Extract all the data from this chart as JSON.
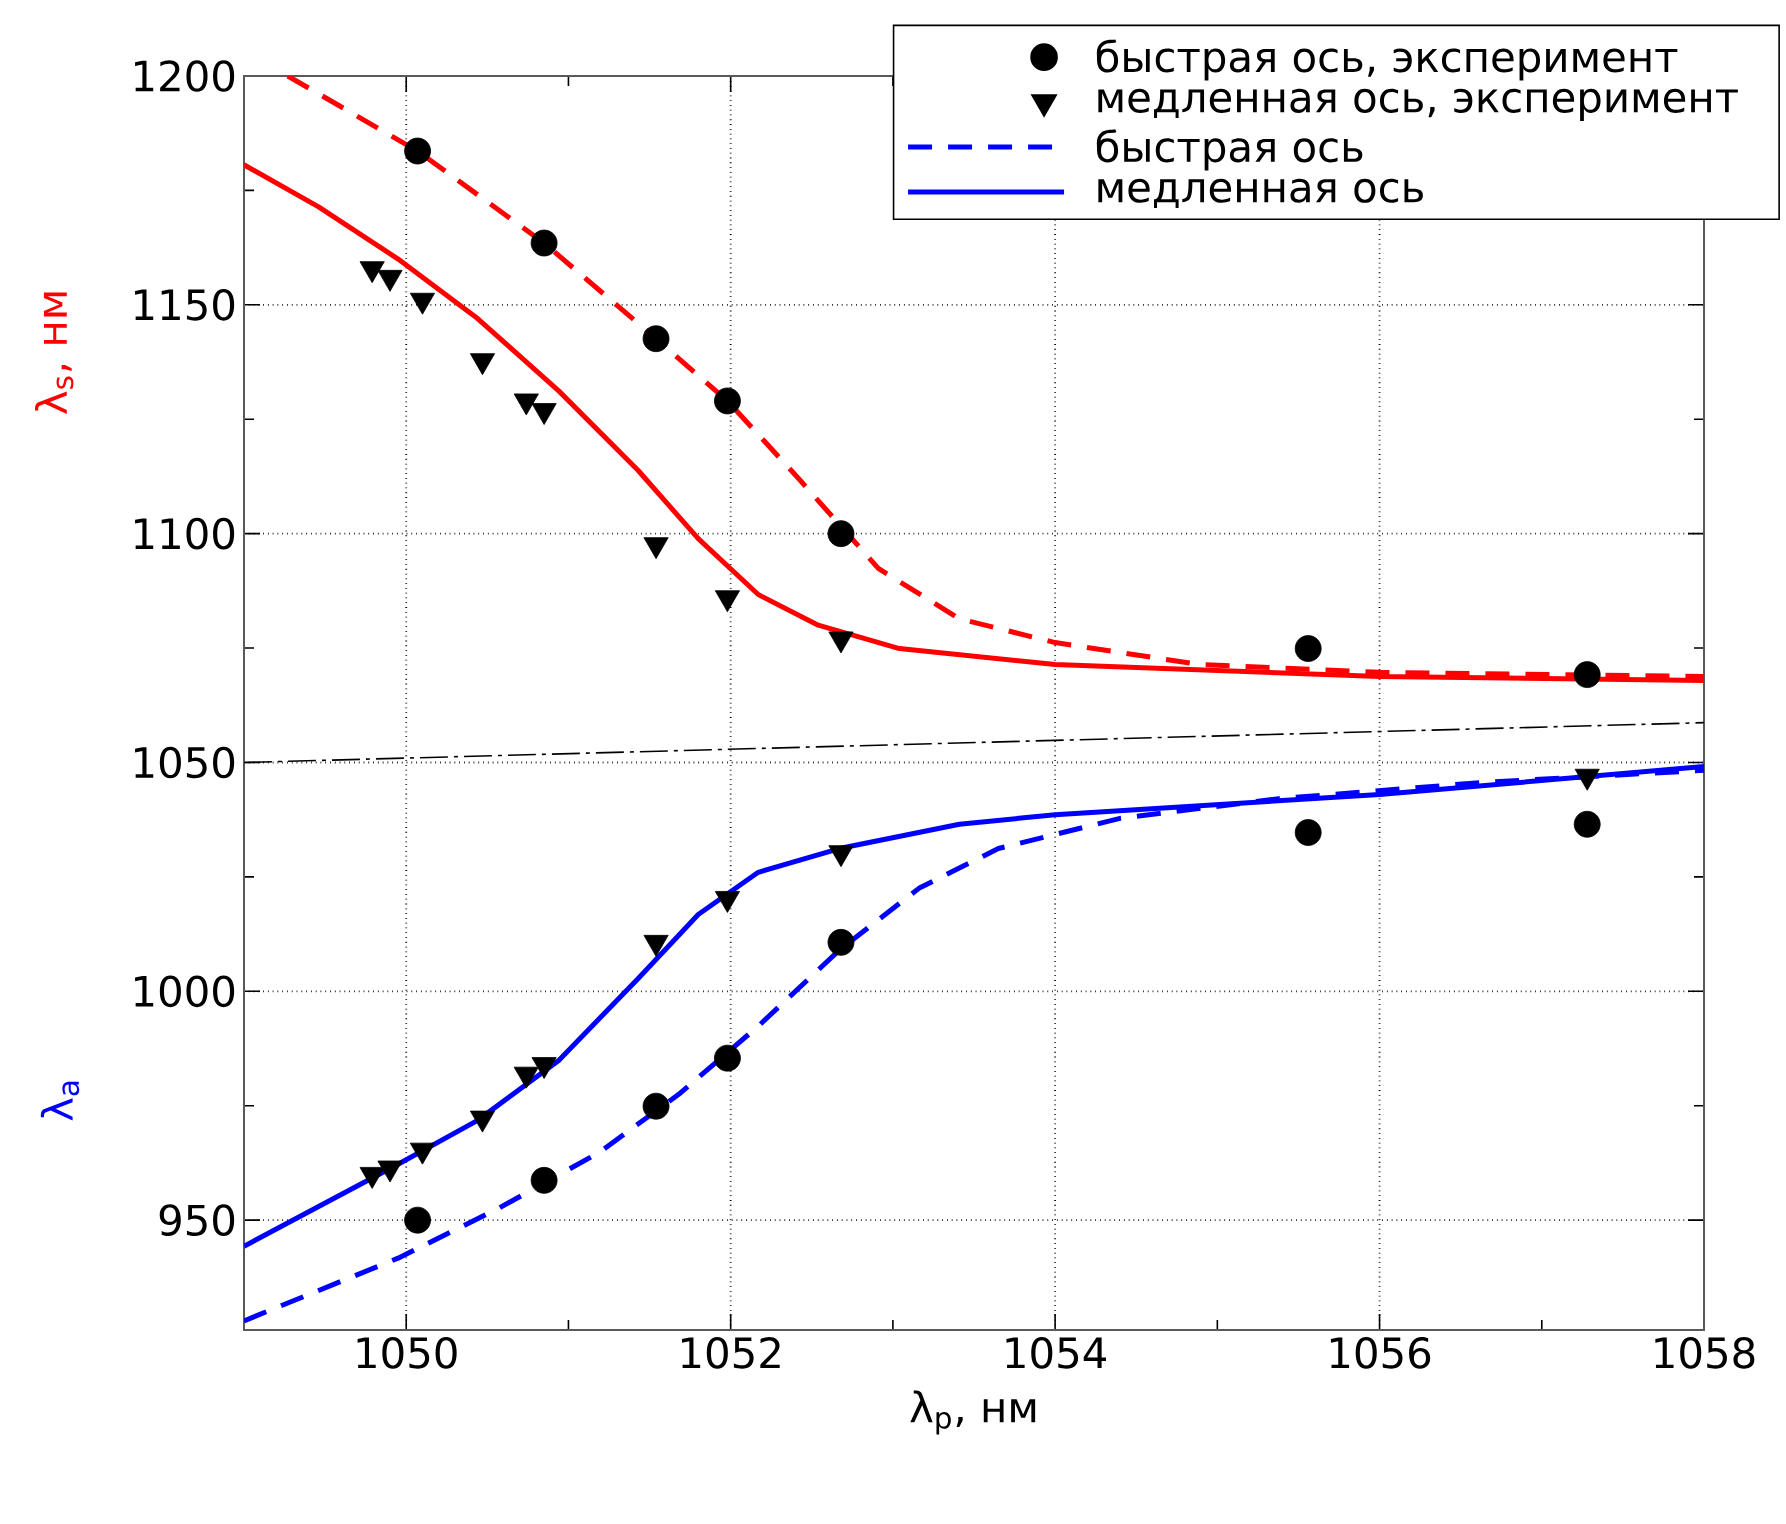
{
  "chart_data": {
    "type": "line",
    "xlabel": "λ$_{p}$, нм",
    "ylabel": "λ$_{s}$, нм",
    "annotations": [
      "λ$_{a}$"
    ],
    "xlim": [
      1049,
      1058
    ],
    "ylim": [
      926,
      1200
    ],
    "xticks": [
      1050,
      1052,
      1054,
      1056,
      1058
    ],
    "yticks": [
      950,
      1000,
      1050,
      1100,
      1150,
      1200
    ],
    "grid": true,
    "legend": "top right",
    "series": [
      {
        "name": "быстрая ось, эксперимент",
        "type": "scatter",
        "marker": "circle",
        "color": "#000000",
        "x": [
          1050.07,
          1050.85,
          1051.54,
          1051.98,
          1052.68,
          1055.56,
          1057.28,
          1050.07,
          1050.85,
          1051.54,
          1051.98,
          1052.68,
          1055.56,
          1057.28
        ],
        "values": [
          1183.6,
          1163.5,
          1142.6,
          1129,
          1100,
          1074.9,
          1069.2,
          950,
          958.7,
          974.9,
          985.4,
          1010.7,
          1034.7,
          1036.5
        ]
      },
      {
        "name": "медленная ось, эксперимент",
        "type": "scatter",
        "marker": "triangle",
        "color": "#000000",
        "x": [
          1049.79,
          1049.9,
          1050.1,
          1050.47,
          1050.74,
          1050.85,
          1051.54,
          1051.98,
          1052.68,
          1049.79,
          1049.9,
          1050.1,
          1050.47,
          1050.74,
          1050.85,
          1051.54,
          1051.98,
          1052.68,
          1057.28
        ],
        "values": [
          1157.9,
          1156,
          1151,
          1137.8,
          1129,
          1126.9,
          1097.6,
          1086,
          1077,
          960,
          961.4,
          965.3,
          972.3,
          981.9,
          984,
          1010.7,
          1020.3,
          1030.3,
          1047
        ]
      },
      {
        "name": "быстрая ось",
        "line_style": "dashed",
        "color": "#0000ff",
        "x": [
          1049,
          1049.95,
          1050.57,
          1051.19,
          1051.68,
          1052.17,
          1052.67,
          1053.16,
          1053.65,
          1054.4,
          1055.38,
          1056.62,
          1058
        ],
        "values": [
          928,
          941.7,
          952.6,
          964.8,
          977.5,
          992.4,
          1009,
          1022.5,
          1031.2,
          1037.8,
          1042.1,
          1045.6,
          1048.3
        ]
      },
      {
        "name": "медленная ось",
        "line_style": "solid",
        "color": "#0000ff",
        "x": [
          1049,
          1049.46,
          1049.95,
          1050.44,
          1050.94,
          1051.43,
          1051.8,
          1052.17,
          1052.67,
          1053.41,
          1054,
          1056,
          1058
        ],
        "values": [
          944.3,
          953,
          962.2,
          971.8,
          984.9,
          1002.8,
          1016.8,
          1026,
          1031.2,
          1036.5,
          1038.6,
          1043,
          1049.1
        ]
      },
      {
        "line_style": "dashed",
        "color": "#ff0000",
        "x": [
          1049.27,
          1050.07,
          1050.85,
          1051.54,
          1051.98,
          1052.42,
          1052.91,
          1053.41,
          1054,
          1054.89,
          1056,
          1058
        ],
        "values": [
          1200,
          1183.6,
          1163.5,
          1142.6,
          1129,
          1112,
          1092.4,
          1081.4,
          1076.2,
          1071.4,
          1069.7,
          1068.8
        ]
      },
      {
        "line_style": "solid",
        "color": "#ff0000",
        "x": [
          1049,
          1049.46,
          1049.95,
          1050.44,
          1050.94,
          1051.43,
          1051.8,
          1052.17,
          1052.54,
          1053.04,
          1054,
          1056,
          1058
        ],
        "values": [
          1180.6,
          1171.4,
          1160,
          1147,
          1131.2,
          1113.8,
          1098.9,
          1086.7,
          1080,
          1074.9,
          1071.4,
          1068.8,
          1067.9
        ]
      },
      {
        "line_style": "dashdot",
        "color": "#000000",
        "x": [
          1049,
          1058
        ],
        "values": [
          1050,
          1058.7
        ]
      }
    ]
  }
}
